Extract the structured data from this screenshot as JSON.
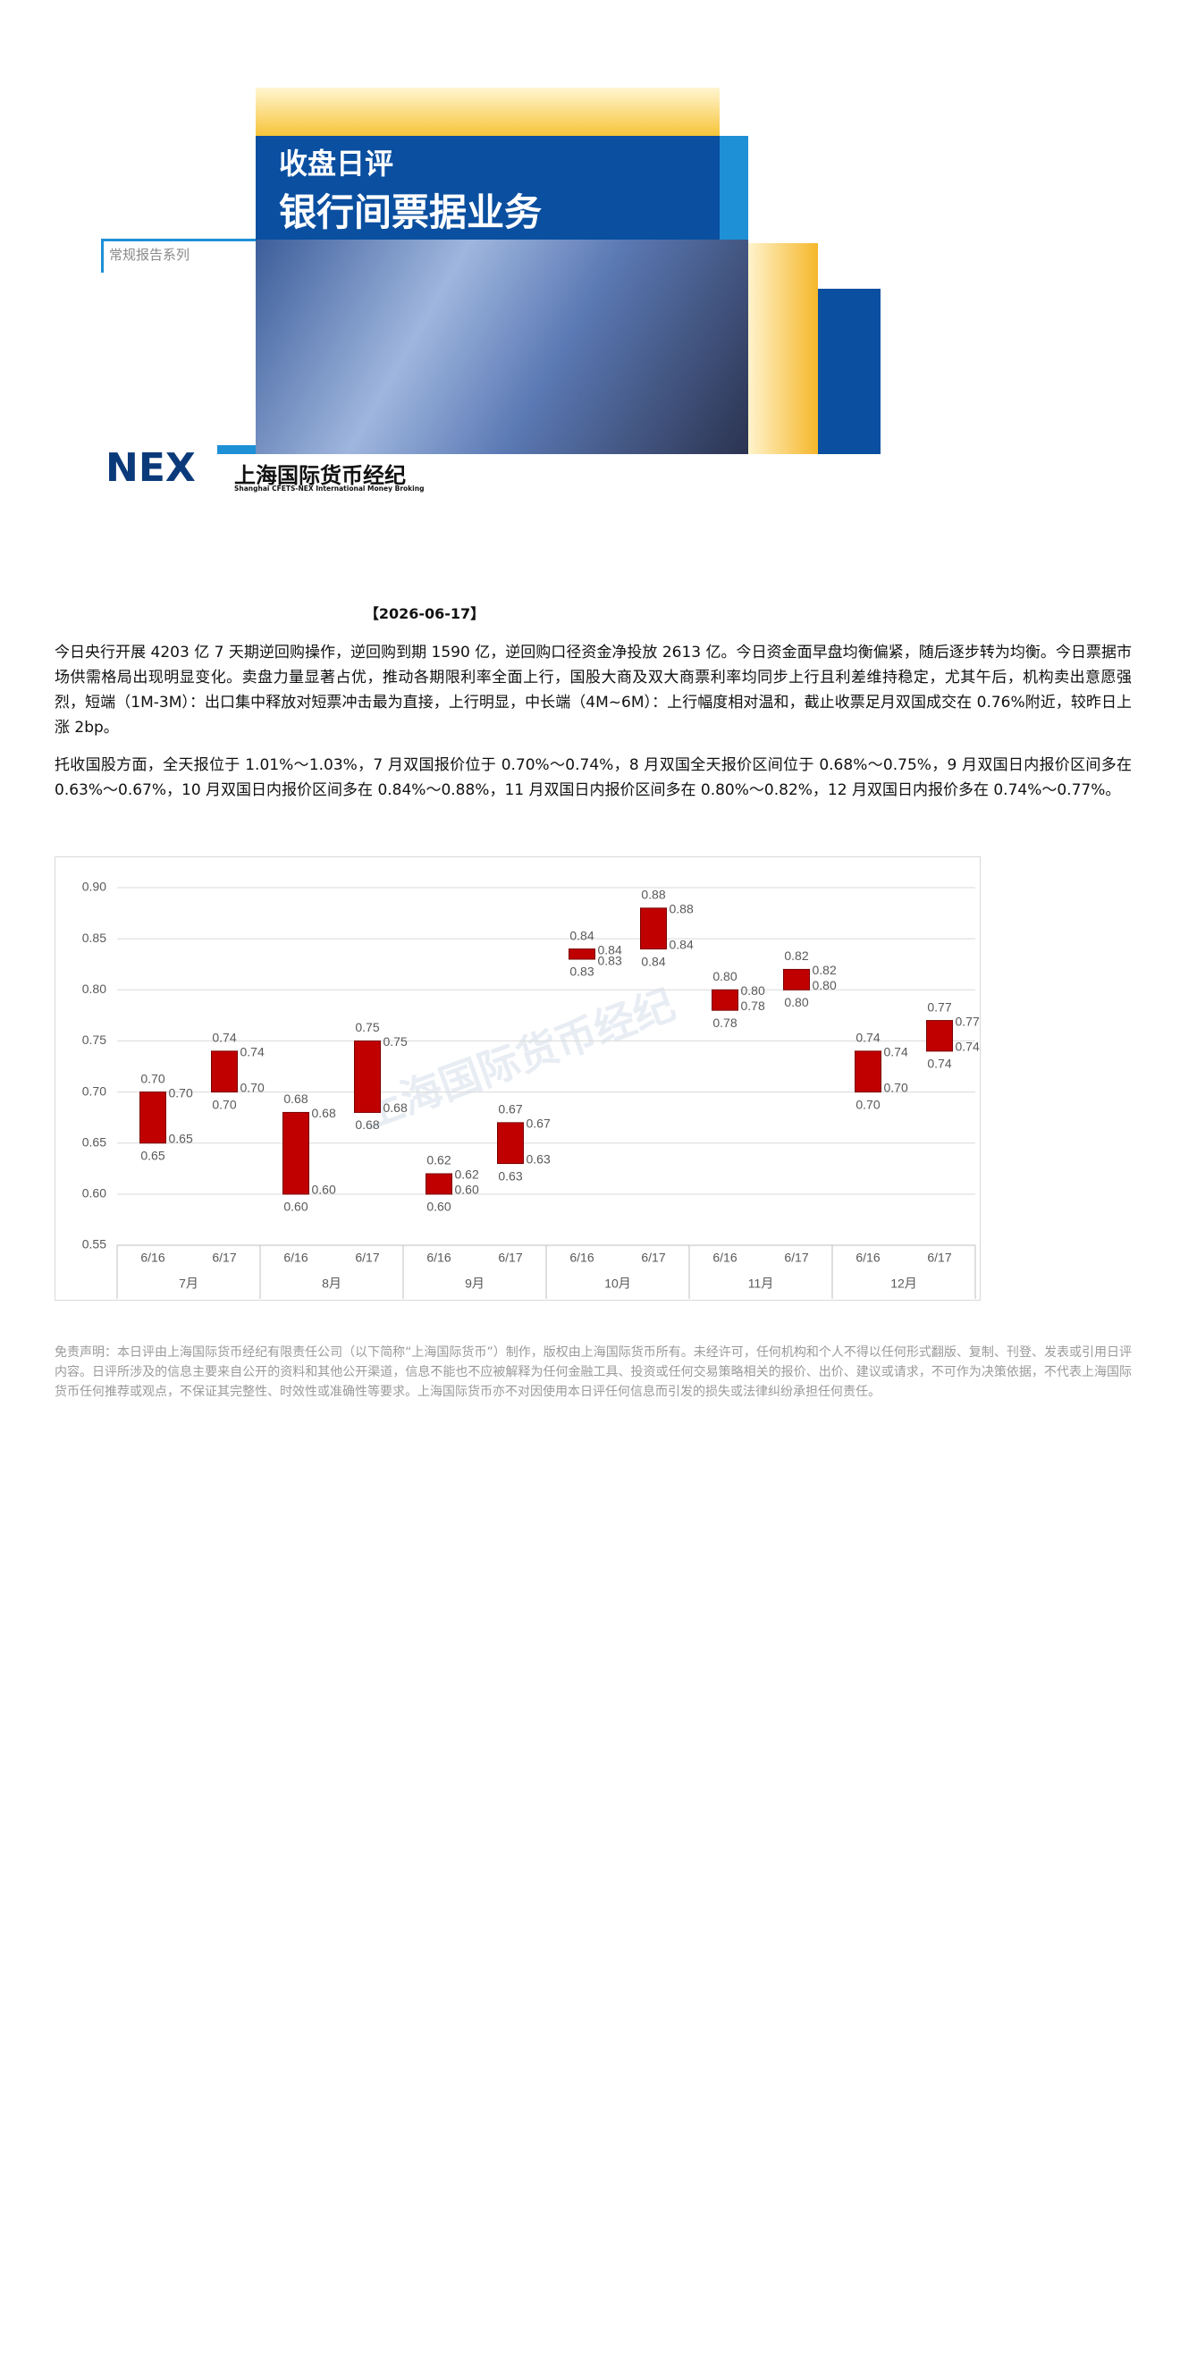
{
  "header": {
    "series_label": "常规报告系列",
    "title_line1": "收盘日评",
    "title_line2": "银行间票据业务",
    "logo": {
      "mark": "NEX",
      "name_cn": "上海国际货币经纪",
      "name_en": "Shanghai CFETS-NEX International Money Broking"
    }
  },
  "date": "【2026-06-17】",
  "paragraphs": [
    "今日央行开展 4203 亿 7 天期逆回购操作，逆回购到期 1590 亿，逆回购口径资金净投放 2613 亿。今日资金面早盘均衡偏紧，随后逐步转为均衡。今日票据市场供需格局出现明显变化。卖盘力量显著占优，推动各期限利率全面上行，国股大商及双大商票利率均同步上行且利差维持稳定，尤其午后，机构卖出意愿强烈，短端（1M-3M）：出口集中释放对短票冲击最为直接，上行明显，中长端（4M~6M）：上行幅度相对温和，截止收票足月双国成交在 0.76%附近，较昨日上涨 2bp。",
    "托收国股方面，全天报位于 1.01%～1.03%，7 月双国报价位于 0.70%～0.74%，8 月双国全天报价区间位于 0.68%～0.75%，9 月双国日内报价区间多在 0.63%～0.67%，10 月双国日内报价区间多在 0.84%～0.88%，11 月双国日内报价区间多在 0.80%～0.82%，12 月双国日内报价多在 0.74%～0.77%。"
  ],
  "chart_data": {
    "type": "floating_bar",
    "watermark": "上海国际货币经纪",
    "categories": [
      "6/16",
      "6/17",
      "6/16",
      "6/17",
      "6/16",
      "6/17",
      "6/16",
      "6/17",
      "6/16",
      "6/17",
      "6/16",
      "6/17"
    ],
    "groups": [
      "7月",
      "8月",
      "9月",
      "10月",
      "11月",
      "12月"
    ],
    "color": "#c00000",
    "low": {
      "values": [
        0.65,
        0.7,
        0.6,
        0.68,
        0.6,
        0.63,
        0.83,
        0.84,
        0.78,
        0.8,
        0.7,
        0.74
      ],
      "value_labels": [
        "0.65",
        "0.70",
        "0.60",
        "0.68",
        "0.60",
        "0.63",
        "0.83",
        "0.84",
        "0.78",
        "0.80",
        "0.70",
        "0.74"
      ]
    },
    "high": {
      "values": [
        0.7,
        0.74,
        0.68,
        0.75,
        0.62,
        0.67,
        0.84,
        0.88,
        0.8,
        0.82,
        0.74,
        0.77
      ],
      "value_labels": [
        "0.70",
        "0.74",
        "0.68",
        "0.75",
        "0.62",
        "0.67",
        "0.84",
        "0.88",
        "0.80",
        "0.82",
        "0.74",
        "0.77"
      ]
    },
    "ylim": [
      0.55,
      0.9
    ],
    "yticks": [
      0.55,
      {
        "value": 0.6,
        "label": "0.60"
      },
      0.65,
      {
        "value": 0.7,
        "label": "0.70"
      },
      0.75,
      {
        "value": 0.8,
        "label": "0.80"
      },
      0.85,
      {
        "value": 0.9,
        "label": "0.90"
      }
    ],
    "grid": true
  },
  "disclaimer": "免责声明：本日评由上海国际货币经纪有限责任公司（以下简称“上海国际货币”）制作，版权由上海国际货币所有。未经许可，任何机构和个人不得以任何形式翻版、复制、刊登、发表或引用日评内容。日评所涉及的信息主要来自公开的资料和其他公开渠道，信息不能也不应被解释为任何金融工具、投资或任何交易策略相关的报价、出价、建议或请求，不可作为决策依据，不代表上海国际货币任何推荐或观点，不保证其完整性、时效性或准确性等要求。上海国际货币亦不对因使用本日评任何信息而引发的损失或法律纠纷承担任何责任。"
}
